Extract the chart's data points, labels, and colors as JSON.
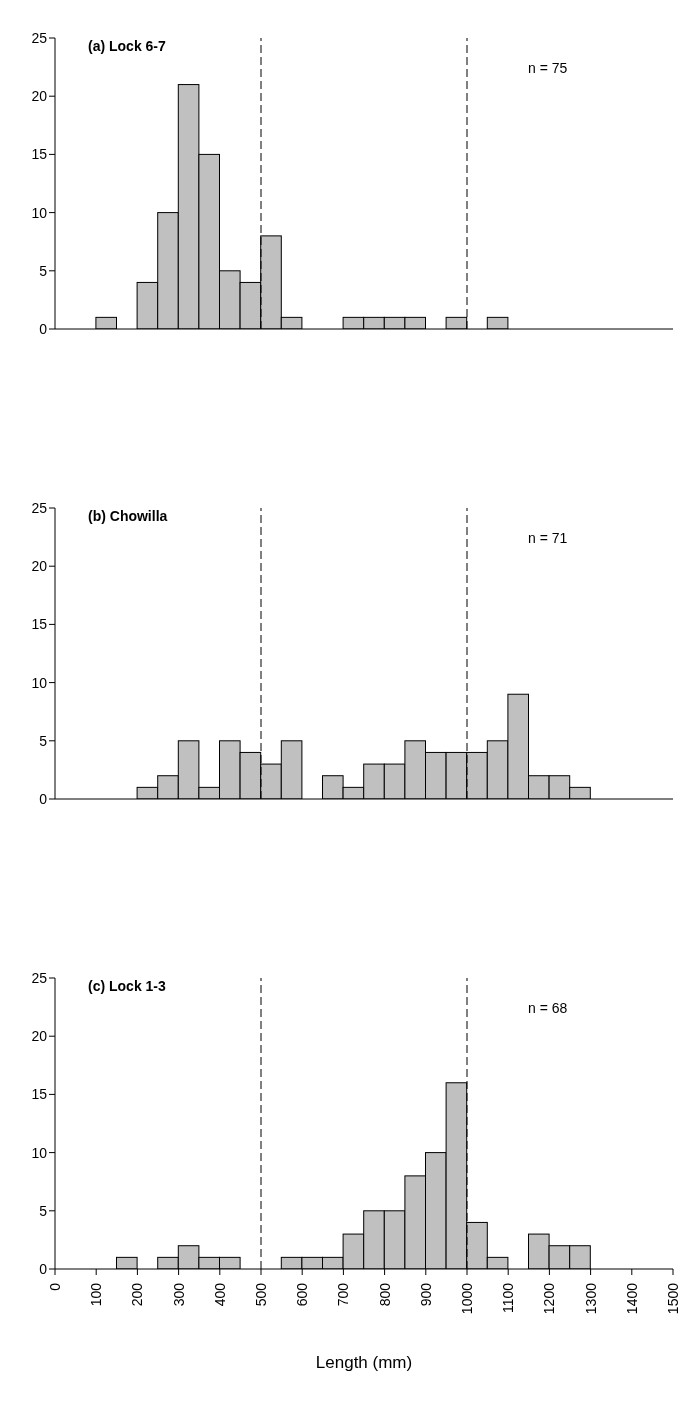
{
  "chart_data": [
    {
      "type": "histogram",
      "annotations": [
        "(a) Lock 6-7",
        "n = 75"
      ],
      "bins": [
        0,
        50,
        100,
        150,
        200,
        250,
        300,
        350,
        400,
        450,
        500,
        550,
        600,
        650,
        700,
        750,
        800,
        850,
        900,
        950,
        1000,
        1050,
        1100,
        1150,
        1200,
        1250,
        1300,
        1350,
        1400,
        1450,
        1500
      ],
      "values": [
        0,
        0,
        1,
        0,
        4,
        10,
        21,
        15,
        5,
        4,
        8,
        1,
        0,
        0,
        1,
        1,
        1,
        1,
        0,
        1,
        0,
        1,
        0,
        0,
        0,
        0,
        0,
        0,
        0,
        0
      ],
      "color": "#c0c0c0",
      "xlim": [
        0,
        1500
      ],
      "xticks": [
        0,
        100,
        200,
        300,
        400,
        500,
        600,
        700,
        800,
        900,
        1000,
        1100,
        1200,
        1300,
        1400,
        1500
      ],
      "ylim": [
        0,
        25
      ],
      "yticks": [
        0,
        5,
        10,
        15,
        20,
        25
      ],
      "tick_labels": "y",
      "ref_lines": [
        {
          "axis": "x",
          "value": 500,
          "line_style": "dashed"
        },
        {
          "axis": "x",
          "value": 1000,
          "line_style": "dashed"
        }
      ]
    },
    {
      "type": "histogram",
      "annotations": [
        "(b) Chowilla",
        "n = 71"
      ],
      "bins": [
        0,
        50,
        100,
        150,
        200,
        250,
        300,
        350,
        400,
        450,
        500,
        550,
        600,
        650,
        700,
        750,
        800,
        850,
        900,
        950,
        1000,
        1050,
        1100,
        1150,
        1200,
        1250,
        1300,
        1350,
        1400,
        1450,
        1500
      ],
      "values": [
        0,
        0,
        0,
        0,
        1,
        2,
        5,
        1,
        5,
        4,
        3,
        5,
        0,
        2,
        1,
        3,
        3,
        5,
        4,
        4,
        4,
        5,
        9,
        2,
        2,
        1,
        0,
        0,
        0,
        0
      ],
      "color": "#c0c0c0",
      "xlim": [
        0,
        1500
      ],
      "xticks": [
        0,
        100,
        200,
        300,
        400,
        500,
        600,
        700,
        800,
        900,
        1000,
        1100,
        1200,
        1300,
        1400,
        1500
      ],
      "ylim": [
        0,
        25
      ],
      "yticks": [
        0,
        5,
        10,
        15,
        20,
        25
      ],
      "tick_labels": "y",
      "ref_lines": [
        {
          "axis": "x",
          "value": 500,
          "line_style": "dashed"
        },
        {
          "axis": "x",
          "value": 1000,
          "line_style": "dashed"
        }
      ]
    },
    {
      "type": "histogram",
      "annotations": [
        "(c) Lock 1-3",
        "n = 68"
      ],
      "xlabel": "Length (mm)",
      "bins": [
        0,
        50,
        100,
        150,
        200,
        250,
        300,
        350,
        400,
        450,
        500,
        550,
        600,
        650,
        700,
        750,
        800,
        850,
        900,
        950,
        1000,
        1050,
        1100,
        1150,
        1200,
        1250,
        1300,
        1350,
        1400,
        1450,
        1500
      ],
      "values": [
        0,
        0,
        0,
        1,
        0,
        1,
        2,
        1,
        1,
        0,
        0,
        1,
        1,
        1,
        3,
        5,
        5,
        8,
        10,
        16,
        4,
        1,
        0,
        3,
        2,
        2,
        0,
        0,
        0,
        0
      ],
      "color": "#c0c0c0",
      "xlim": [
        0,
        1500
      ],
      "xticks": [
        0,
        100,
        200,
        300,
        400,
        500,
        600,
        700,
        800,
        900,
        1000,
        1100,
        1200,
        1300,
        1400,
        1500
      ],
      "ylim": [
        0,
        25
      ],
      "yticks": [
        0,
        5,
        10,
        15,
        20,
        25
      ],
      "ref_lines": [
        {
          "axis": "x",
          "value": 500,
          "line_style": "dashed"
        },
        {
          "axis": "x",
          "value": 1000,
          "line_style": "dashed"
        }
      ]
    }
  ]
}
